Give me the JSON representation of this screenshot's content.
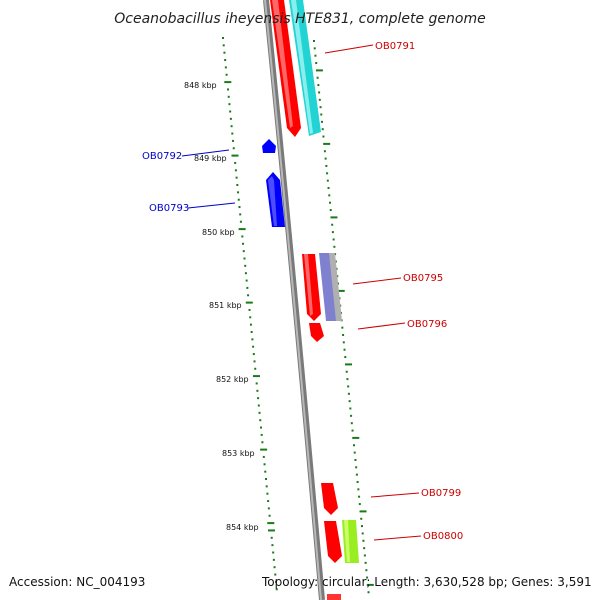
{
  "title": "Oceanobacillus iheyensis HTE831, complete genome",
  "accession": "Accession: NC_004193",
  "topology": "Topology: circular; Length: 3,630,528 bp; Genes: 3,591",
  "colors": {
    "backbone": "#8c8c8c",
    "tick": "#1a7a1a",
    "forward_label": "#cc0000",
    "reverse_label": "#0000cc",
    "cds": "#ff0000",
    "reverse_cds": "#0000ff",
    "cyan_feature": "#22d3d3",
    "purple_feature": "#8080d0",
    "gray_feature": "#b0b0b0",
    "lime_feature": "#99ee22"
  },
  "scale_labels": [
    "848 kbp",
    "849 kbp",
    "850 kbp",
    "851 kbp",
    "852 kbp",
    "853 kbp",
    "854 kbp"
  ],
  "gene_labels": [
    {
      "id": "lbl-ob0791",
      "text": "OB0791",
      "strand": "forward"
    },
    {
      "id": "lbl-ob0792",
      "text": "OB0792",
      "strand": "reverse"
    },
    {
      "id": "lbl-ob0793",
      "text": "OB0793",
      "strand": "reverse"
    },
    {
      "id": "lbl-ob0795",
      "text": "OB0795",
      "strand": "forward"
    },
    {
      "id": "lbl-ob0796",
      "text": "OB0796",
      "strand": "forward"
    },
    {
      "id": "lbl-ob0799",
      "text": "OB0799",
      "strand": "forward"
    },
    {
      "id": "lbl-ob0800",
      "text": "OB0800",
      "strand": "forward"
    }
  ]
}
